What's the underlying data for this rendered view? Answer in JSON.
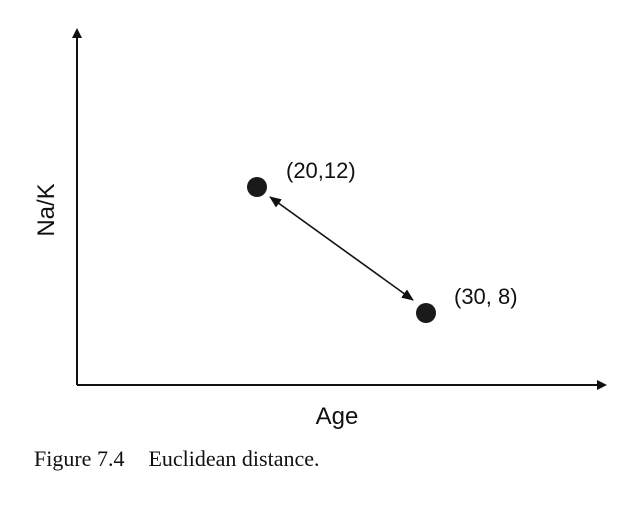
{
  "diagram": {
    "axes": {
      "x_label": "Age",
      "y_label": "Na/K"
    },
    "points": [
      {
        "label": "(20,12)",
        "x": 20,
        "y": 12
      },
      {
        "label": "(30, 8)",
        "x": 30,
        "y": 8
      }
    ],
    "connector": "double-headed-arrow",
    "colors": {
      "ink": "#111111",
      "point": "#1a1a1a"
    }
  },
  "caption": {
    "number": "Figure 7.4",
    "text": "Euclidean distance."
  }
}
